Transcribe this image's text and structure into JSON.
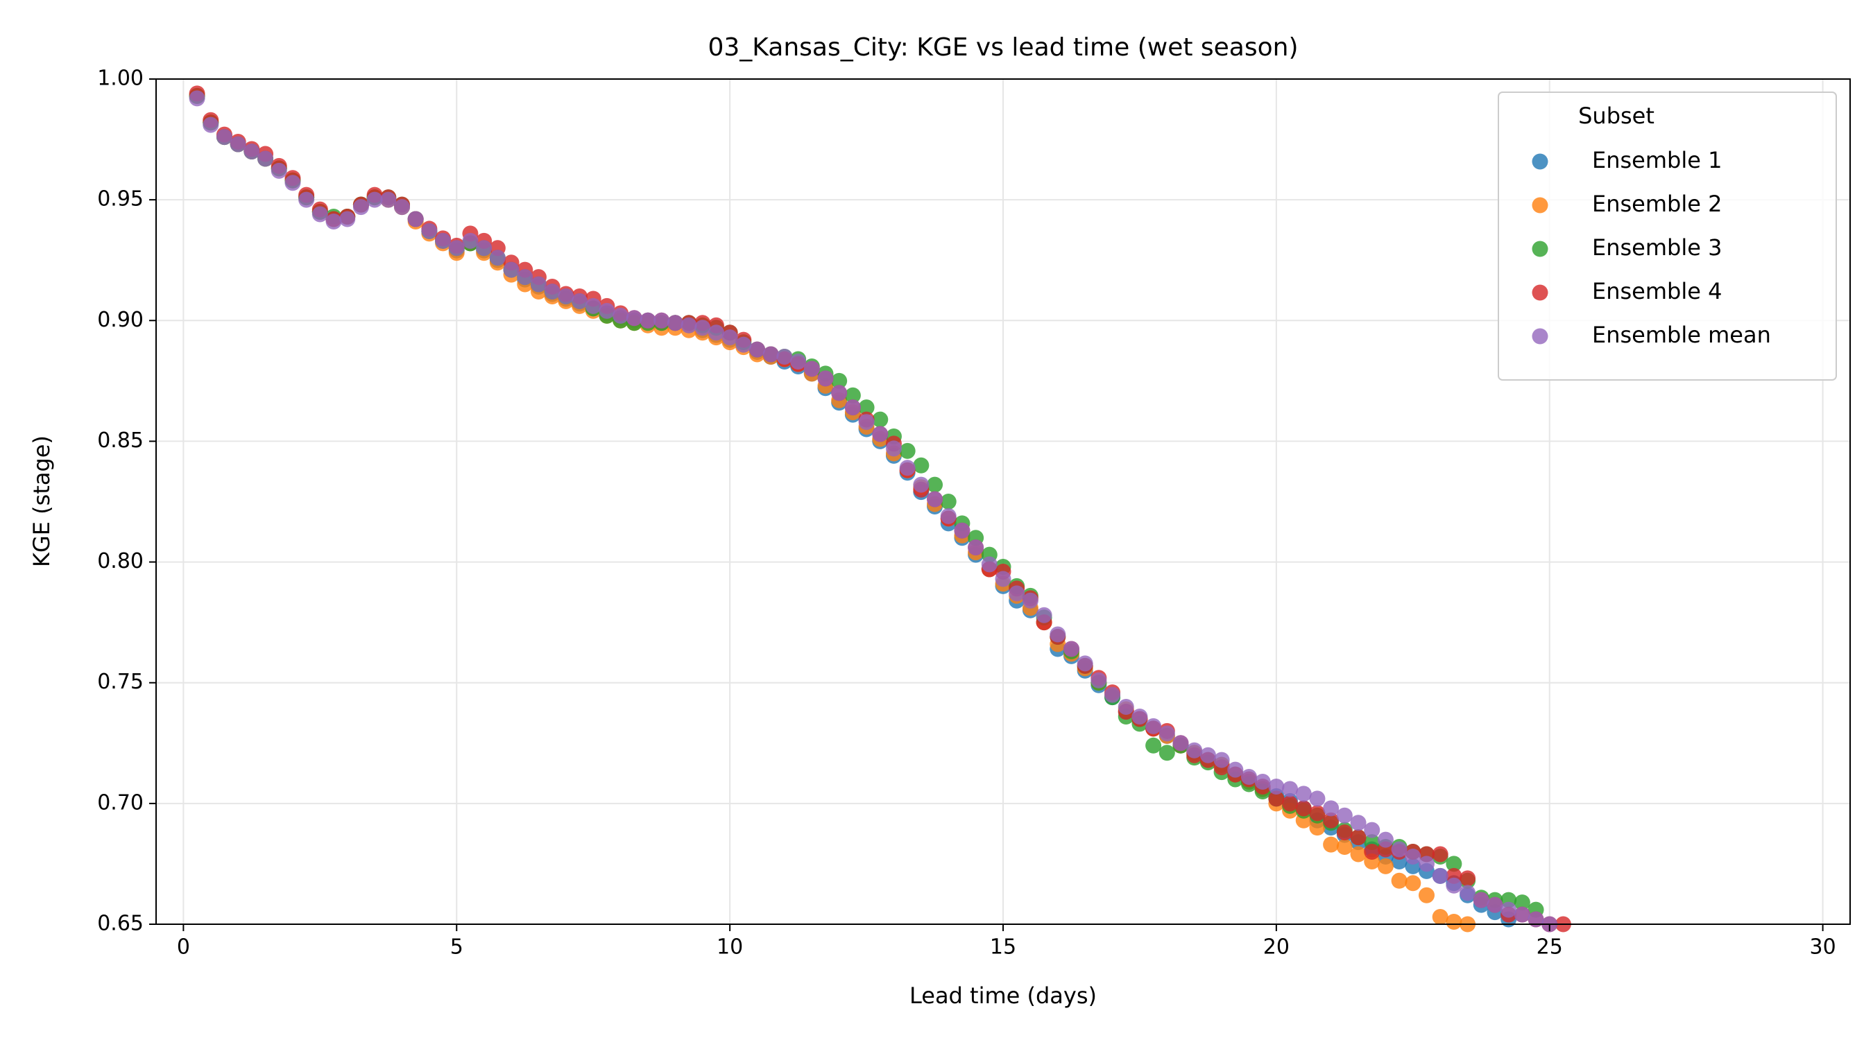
{
  "chart_data": {
    "type": "scatter",
    "title": "03_Kansas_City: KGE vs lead time (wet season)",
    "x_label": "Lead time (days)",
    "y_label": "KGE (stage)",
    "legend_title": "Subset",
    "legend": "upper right",
    "grid": true,
    "xlim": [
      -0.5,
      30.5
    ],
    "ylim": [
      0.65,
      1.0
    ],
    "xticks": [
      0,
      5,
      10,
      15,
      20,
      25,
      30
    ],
    "yticks": [
      {
        "value": 0.65,
        "label": "0.65"
      },
      {
        "value": 0.7,
        "label": "0.70"
      },
      {
        "value": 0.75,
        "label": "0.75"
      },
      {
        "value": 0.8,
        "label": "0.80"
      },
      {
        "value": 0.85,
        "label": "0.85"
      },
      {
        "value": 0.9,
        "label": "0.90"
      },
      {
        "value": 0.95,
        "label": "0.95"
      },
      {
        "value": 1.0,
        "label": "1.00"
      }
    ],
    "x": [
      0.25,
      0.5,
      0.75,
      1,
      1.25,
      1.5,
      1.75,
      2,
      2.25,
      2.5,
      2.75,
      3,
      3.25,
      3.5,
      3.75,
      4,
      4.25,
      4.5,
      4.75,
      5,
      5.25,
      5.5,
      5.75,
      6,
      6.25,
      6.5,
      6.75,
      7,
      7.25,
      7.5,
      7.75,
      8,
      8.25,
      8.5,
      8.75,
      9,
      9.25,
      9.5,
      9.75,
      10,
      10.25,
      10.5,
      10.75,
      11,
      11.25,
      11.5,
      11.75,
      12,
      12.25,
      12.5,
      12.75,
      13,
      13.25,
      13.5,
      13.75,
      14,
      14.25,
      14.5,
      14.75,
      15,
      15.25,
      15.5,
      15.75,
      16,
      16.25,
      16.5,
      16.75,
      17,
      17.25,
      17.5,
      17.75,
      18,
      18.25,
      18.5,
      18.75,
      19,
      19.25,
      19.5,
      19.75,
      20,
      20.25,
      20.5,
      20.75,
      21,
      21.25,
      21.5,
      21.75,
      22,
      22.25,
      22.5,
      22.75,
      23,
      23.25,
      23.5,
      23.75,
      24,
      24.25,
      24.5,
      24.75,
      25,
      25.25
    ],
    "series": [
      {
        "name": "Ensemble 1",
        "color": "#1f77b4",
        "values": [
          0.993,
          0.982,
          0.976,
          0.973,
          0.97,
          0.967,
          0.963,
          0.958,
          0.951,
          0.945,
          0.942,
          0.943,
          0.948,
          0.951,
          0.95,
          0.947,
          0.942,
          0.937,
          0.933,
          0.929,
          0.932,
          0.929,
          0.925,
          0.921,
          0.917,
          0.914,
          0.911,
          0.909,
          0.907,
          0.905,
          0.903,
          0.901,
          0.9,
          0.9,
          0.899,
          0.899,
          0.898,
          0.896,
          0.894,
          0.892,
          0.89,
          0.887,
          0.885,
          0.883,
          0.881,
          0.878,
          0.872,
          0.866,
          0.861,
          0.855,
          0.85,
          0.844,
          0.837,
          0.829,
          0.823,
          0.816,
          0.81,
          0.803,
          0.797,
          0.79,
          0.784,
          0.78,
          0.775,
          0.764,
          0.761,
          0.755,
          0.749,
          0.744,
          0.738,
          0.735,
          0.731,
          0.728,
          0.724,
          0.721,
          0.718,
          0.716,
          0.712,
          0.709,
          0.706,
          0.703,
          0.701,
          0.698,
          0.693,
          0.69,
          0.687,
          0.684,
          0.681,
          0.678,
          0.676,
          0.674,
          0.672,
          0.67,
          0.667,
          0.662,
          0.658,
          0.655,
          0.652,
          null,
          null,
          null,
          null
        ]
      },
      {
        "name": "Ensemble 2",
        "color": "#ff7f0e",
        "values": [
          0.993,
          0.982,
          0.976,
          0.973,
          0.97,
          0.967,
          0.963,
          0.958,
          0.951,
          0.945,
          0.942,
          0.943,
          0.948,
          0.951,
          0.95,
          0.947,
          0.941,
          0.936,
          0.932,
          0.928,
          0.932,
          0.928,
          0.924,
          0.919,
          0.915,
          0.912,
          0.91,
          0.908,
          0.906,
          0.904,
          0.902,
          0.9,
          0.899,
          0.898,
          0.897,
          0.897,
          0.896,
          0.895,
          0.893,
          0.891,
          0.889,
          0.886,
          0.885,
          0.884,
          0.882,
          0.878,
          0.873,
          0.867,
          0.862,
          0.856,
          0.851,
          0.845,
          0.838,
          0.831,
          0.824,
          0.818,
          0.811,
          0.804,
          0.797,
          0.791,
          0.786,
          0.781,
          0.775,
          0.766,
          0.762,
          0.756,
          0.75,
          0.745,
          0.739,
          0.735,
          0.731,
          0.728,
          0.724,
          0.721,
          0.718,
          0.716,
          0.712,
          0.709,
          0.706,
          0.7,
          0.697,
          0.693,
          0.69,
          0.683,
          0.682,
          0.679,
          0.676,
          0.674,
          0.668,
          0.667,
          0.662,
          0.653,
          0.651,
          0.65,
          null,
          null,
          null,
          null,
          null,
          null,
          null
        ]
      },
      {
        "name": "Ensemble 3",
        "color": "#2ca02c",
        "values": [
          0.993,
          0.982,
          0.976,
          0.973,
          0.97,
          0.967,
          0.963,
          0.958,
          0.951,
          0.945,
          0.943,
          0.943,
          0.948,
          0.951,
          0.951,
          0.948,
          0.942,
          0.937,
          0.933,
          0.93,
          0.932,
          0.93,
          0.926,
          0.921,
          0.918,
          0.915,
          0.912,
          0.91,
          0.908,
          0.905,
          0.902,
          0.9,
          0.899,
          0.899,
          0.899,
          0.899,
          0.899,
          0.898,
          0.897,
          0.895,
          0.891,
          0.888,
          0.886,
          0.885,
          0.884,
          0.881,
          0.878,
          0.875,
          0.869,
          0.864,
          0.859,
          0.852,
          0.846,
          0.84,
          0.832,
          0.825,
          0.816,
          0.81,
          0.803,
          0.798,
          0.79,
          0.786,
          0.777,
          0.769,
          0.763,
          0.757,
          0.75,
          0.744,
          0.736,
          0.733,
          0.724,
          0.721,
          0.724,
          0.719,
          0.717,
          0.713,
          0.71,
          0.708,
          0.705,
          0.702,
          0.699,
          0.697,
          0.695,
          0.692,
          0.689,
          0.686,
          0.684,
          0.682,
          0.682,
          0.68,
          0.679,
          0.678,
          0.675,
          0.668,
          0.661,
          0.66,
          0.66,
          0.659,
          0.656,
          null,
          null
        ]
      },
      {
        "name": "Ensemble 4",
        "color": "#d62728",
        "values": [
          0.994,
          0.983,
          0.977,
          0.974,
          0.971,
          0.969,
          0.964,
          0.959,
          0.952,
          0.946,
          0.942,
          0.943,
          0.948,
          0.952,
          0.951,
          0.948,
          0.942,
          0.938,
          0.934,
          0.931,
          0.936,
          0.933,
          0.93,
          0.924,
          0.921,
          0.918,
          0.914,
          0.911,
          0.91,
          0.909,
          0.906,
          0.903,
          0.901,
          0.9,
          0.9,
          0.899,
          0.899,
          0.899,
          0.898,
          0.895,
          0.892,
          0.888,
          0.886,
          0.884,
          0.882,
          0.88,
          0.876,
          0.87,
          0.864,
          0.859,
          0.853,
          0.849,
          0.838,
          0.83,
          0.826,
          0.818,
          0.813,
          0.806,
          0.797,
          0.796,
          0.789,
          0.785,
          0.775,
          0.769,
          0.764,
          0.757,
          0.752,
          0.746,
          0.738,
          0.735,
          0.731,
          0.73,
          0.725,
          0.72,
          0.718,
          0.715,
          0.712,
          0.71,
          0.707,
          0.702,
          0.7,
          0.698,
          0.696,
          0.693,
          0.688,
          0.686,
          0.68,
          0.681,
          0.68,
          0.68,
          0.679,
          0.679,
          0.67,
          0.669,
          0.66,
          0.658,
          0.654,
          0.654,
          0.652,
          0.65,
          0.65
        ]
      },
      {
        "name": "Ensemble mean",
        "color": "#9467bd",
        "values": [
          0.992,
          0.981,
          0.976,
          0.973,
          0.97,
          0.967,
          0.962,
          0.957,
          0.95,
          0.944,
          0.941,
          0.942,
          0.947,
          0.95,
          0.95,
          0.947,
          0.942,
          0.937,
          0.933,
          0.93,
          0.933,
          0.93,
          0.926,
          0.921,
          0.918,
          0.915,
          0.912,
          0.91,
          0.908,
          0.906,
          0.904,
          0.902,
          0.901,
          0.9,
          0.9,
          0.899,
          0.898,
          0.897,
          0.895,
          0.893,
          0.89,
          0.888,
          0.886,
          0.885,
          0.883,
          0.88,
          0.876,
          0.87,
          0.864,
          0.858,
          0.853,
          0.847,
          0.839,
          0.832,
          0.826,
          0.819,
          0.813,
          0.806,
          0.799,
          0.793,
          0.787,
          0.784,
          0.778,
          0.77,
          0.764,
          0.758,
          0.751,
          0.745,
          0.74,
          0.736,
          0.732,
          0.729,
          0.725,
          0.722,
          0.72,
          0.718,
          0.714,
          0.711,
          0.709,
          0.707,
          0.706,
          0.704,
          0.702,
          0.698,
          0.695,
          0.692,
          0.689,
          0.685,
          0.681,
          0.678,
          0.675,
          0.67,
          0.666,
          0.663,
          0.66,
          0.658,
          0.656,
          0.654,
          0.652,
          0.65,
          null
        ]
      }
    ]
  }
}
